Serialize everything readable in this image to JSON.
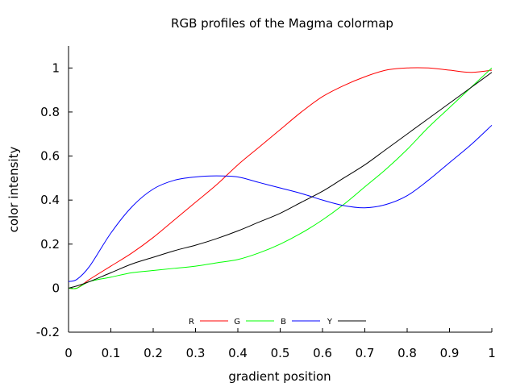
{
  "chart_data": {
    "type": "line",
    "title": "RGB profiles of the Magma colormap",
    "xlabel": "gradient position",
    "ylabel": "color intensity",
    "xlim": [
      0,
      1
    ],
    "ylim": [
      -0.2,
      1.1
    ],
    "x_ticks": [
      0,
      0.1,
      0.2,
      0.3,
      0.4,
      0.5,
      0.6,
      0.7,
      0.8,
      0.9,
      1
    ],
    "x_tick_labels": [
      "0",
      "0.1",
      "0.2",
      "0.3",
      "0.4",
      "0.5",
      "0.6",
      "0.7",
      "0.8",
      "0.9",
      "1"
    ],
    "y_ticks": [
      -0.2,
      0,
      0.2,
      0.4,
      0.6,
      0.8,
      1
    ],
    "y_tick_labels": [
      "-0.2",
      "0",
      "0.2",
      "0.4",
      "0.6",
      "0.8",
      "1"
    ],
    "grid": false,
    "legend_position": "bottom-center",
    "x": [
      0,
      0.02,
      0.05,
      0.1,
      0.15,
      0.2,
      0.25,
      0.3,
      0.35,
      0.4,
      0.45,
      0.5,
      0.55,
      0.6,
      0.65,
      0.7,
      0.75,
      0.8,
      0.85,
      0.9,
      0.95,
      1
    ],
    "series": [
      {
        "name": "R",
        "color": "#ff0000",
        "values": [
          0.0,
          0.0,
          0.04,
          0.1,
          0.16,
          0.23,
          0.31,
          0.39,
          0.47,
          0.56,
          0.64,
          0.72,
          0.8,
          0.87,
          0.92,
          0.96,
          0.99,
          1.0,
          1.0,
          0.99,
          0.98,
          0.99
        ]
      },
      {
        "name": "G",
        "color": "#00ff00",
        "values": [
          0.0,
          0.0,
          0.03,
          0.05,
          0.07,
          0.08,
          0.09,
          0.1,
          0.115,
          0.13,
          0.16,
          0.2,
          0.25,
          0.31,
          0.38,
          0.46,
          0.54,
          0.63,
          0.73,
          0.82,
          0.91,
          1.0
        ]
      },
      {
        "name": "B",
        "color": "#0000ff",
        "values": [
          0.03,
          0.04,
          0.1,
          0.25,
          0.37,
          0.45,
          0.49,
          0.505,
          0.51,
          0.505,
          0.48,
          0.455,
          0.43,
          0.4,
          0.375,
          0.365,
          0.38,
          0.42,
          0.49,
          0.57,
          0.65,
          0.74
        ]
      },
      {
        "name": "Y",
        "color": "#000000",
        "values": [
          0.0,
          0.01,
          0.03,
          0.07,
          0.11,
          0.14,
          0.17,
          0.195,
          0.225,
          0.26,
          0.3,
          0.34,
          0.39,
          0.44,
          0.5,
          0.56,
          0.63,
          0.7,
          0.77,
          0.84,
          0.91,
          0.98
        ]
      }
    ]
  }
}
